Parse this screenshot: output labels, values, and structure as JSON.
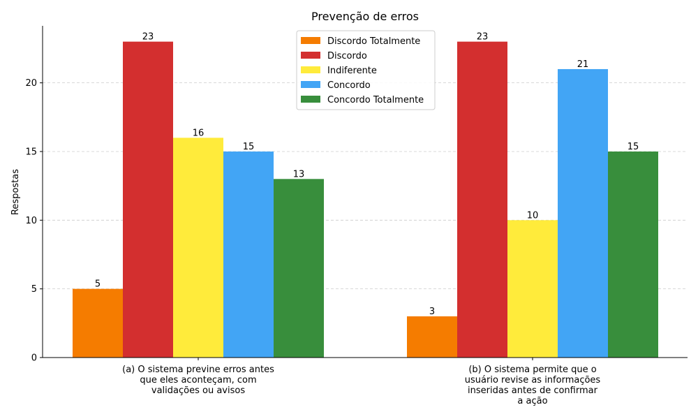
{
  "chart_data": {
    "type": "bar",
    "title": "Prevenção de erros",
    "xlabel": "",
    "ylabel": "Respostas",
    "ylim": [
      0,
      24.15
    ],
    "yticks": [
      0,
      5,
      10,
      15,
      20
    ],
    "grid": true,
    "legend_position": "top-center",
    "categories": [
      [
        "(a) O sistema previne erros antes",
        "que eles aconteçam, com",
        "validações ou avisos"
      ],
      [
        "(b) O sistema permite que o",
        "usuário revise as informações",
        "inseridas antes de confirmar",
        "a ação"
      ]
    ],
    "series": [
      {
        "name": "Discordo Totalmente",
        "color": "#f57c00",
        "values": [
          5,
          3
        ]
      },
      {
        "name": "Discordo",
        "color": "#d32f2f",
        "values": [
          23,
          23
        ]
      },
      {
        "name": "Indiferente",
        "color": "#ffeb3b",
        "values": [
          16,
          10
        ]
      },
      {
        "name": "Concordo",
        "color": "#42a5f5",
        "values": [
          15,
          21
        ]
      },
      {
        "name": "Concordo Totalmente",
        "color": "#388e3c",
        "values": [
          13,
          15
        ]
      }
    ]
  }
}
